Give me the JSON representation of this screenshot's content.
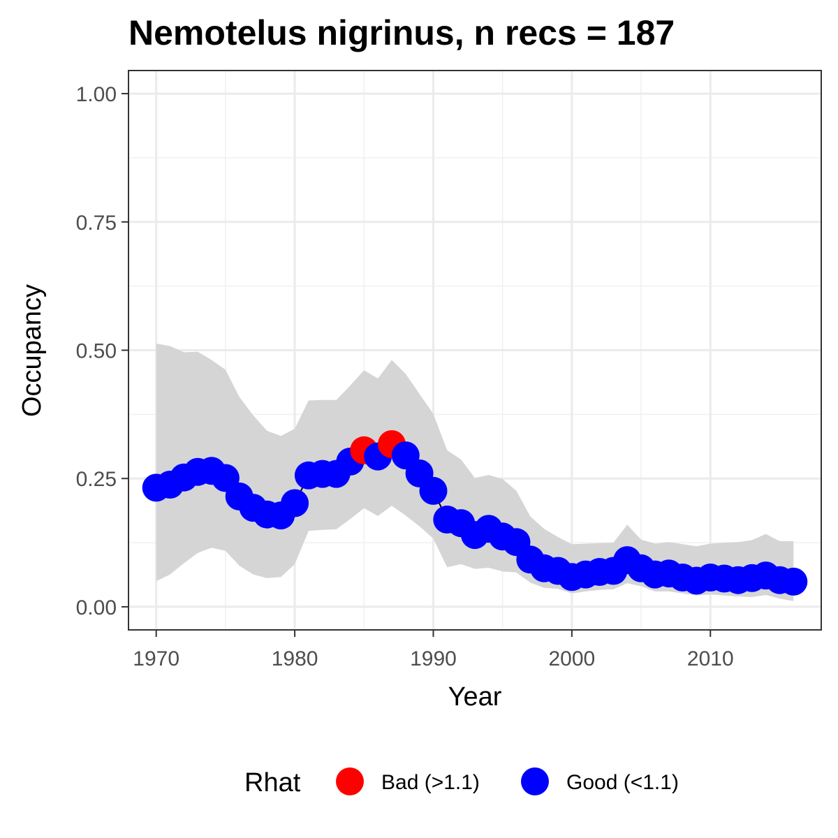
{
  "chart_data": {
    "type": "scatter",
    "title": "Nemotelus nigrinus, n recs = 187",
    "xlabel": "Year",
    "ylabel": "Occupancy",
    "xlim": [
      1968,
      2018
    ],
    "ylim": [
      -0.045,
      1.045
    ],
    "x_ticks": [
      1970,
      1980,
      1990,
      2000,
      2010
    ],
    "x_tick_labels": [
      "1970",
      "1980",
      "1990",
      "2000",
      "2010"
    ],
    "y_ticks": [
      0,
      0.25,
      0.5,
      0.75,
      1.0
    ],
    "y_tick_labels": [
      "0.00",
      "0.25",
      "0.50",
      "0.75",
      "1.00"
    ],
    "grid": true,
    "legend": {
      "title": "Rhat",
      "position": "bottom",
      "entries": [
        {
          "label": "Bad (>1.1)",
          "color": "#ff0000"
        },
        {
          "label": "Good (<1.1)",
          "color": "#0000ff"
        }
      ]
    },
    "colors": {
      "bad": "#ff0000",
      "good": "#0000ff",
      "ribbon": "#d5d5d5",
      "line": "#000000"
    },
    "x": [
      1970,
      1971,
      1972,
      1973,
      1974,
      1975,
      1976,
      1977,
      1978,
      1979,
      1980,
      1981,
      1982,
      1983,
      1984,
      1985,
      1986,
      1987,
      1988,
      1989,
      1990,
      1991,
      1992,
      1993,
      1994,
      1995,
      1996,
      1997,
      1998,
      1999,
      2000,
      2001,
      2002,
      2003,
      2004,
      2005,
      2006,
      2007,
      2008,
      2009,
      2010,
      2011,
      2012,
      2013,
      2014,
      2015,
      2016
    ],
    "y": [
      0.232,
      0.238,
      0.252,
      0.263,
      0.265,
      0.251,
      0.215,
      0.193,
      0.18,
      0.178,
      0.202,
      0.256,
      0.259,
      0.259,
      0.283,
      0.305,
      0.293,
      0.317,
      0.295,
      0.26,
      0.226,
      0.17,
      0.163,
      0.14,
      0.152,
      0.137,
      0.126,
      0.092,
      0.075,
      0.07,
      0.058,
      0.063,
      0.068,
      0.07,
      0.091,
      0.075,
      0.063,
      0.065,
      0.057,
      0.051,
      0.057,
      0.055,
      0.052,
      0.056,
      0.061,
      0.052,
      0.049
    ],
    "rhat": [
      "Good",
      "Good",
      "Good",
      "Good",
      "Good",
      "Good",
      "Good",
      "Good",
      "Good",
      "Good",
      "Good",
      "Good",
      "Good",
      "Good",
      "Good",
      "Bad",
      "Good",
      "Bad",
      "Good",
      "Good",
      "Good",
      "Good",
      "Good",
      "Good",
      "Good",
      "Good",
      "Good",
      "Good",
      "Good",
      "Good",
      "Good",
      "Good",
      "Good",
      "Good",
      "Good",
      "Good",
      "Good",
      "Good",
      "Good",
      "Good",
      "Good",
      "Good",
      "Good",
      "Good",
      "Good",
      "Good",
      "Good"
    ],
    "lower": [
      0.05,
      0.063,
      0.085,
      0.105,
      0.115,
      0.109,
      0.08,
      0.063,
      0.056,
      0.058,
      0.083,
      0.148,
      0.15,
      0.151,
      0.171,
      0.192,
      0.177,
      0.197,
      0.178,
      0.157,
      0.133,
      0.077,
      0.083,
      0.074,
      0.076,
      0.069,
      0.067,
      0.047,
      0.037,
      0.035,
      0.026,
      0.03,
      0.033,
      0.034,
      0.046,
      0.04,
      0.03,
      0.03,
      0.026,
      0.022,
      0.024,
      0.022,
      0.02,
      0.019,
      0.023,
      0.016,
      0.011
    ],
    "upper": [
      0.513,
      0.508,
      0.496,
      0.497,
      0.481,
      0.462,
      0.409,
      0.373,
      0.343,
      0.333,
      0.347,
      0.402,
      0.403,
      0.403,
      0.431,
      0.461,
      0.445,
      0.481,
      0.454,
      0.415,
      0.376,
      0.305,
      0.287,
      0.251,
      0.257,
      0.249,
      0.226,
      0.176,
      0.152,
      0.136,
      0.122,
      0.123,
      0.124,
      0.125,
      0.16,
      0.131,
      0.123,
      0.126,
      0.122,
      0.118,
      0.123,
      0.125,
      0.126,
      0.13,
      0.142,
      0.128,
      0.128
    ]
  }
}
